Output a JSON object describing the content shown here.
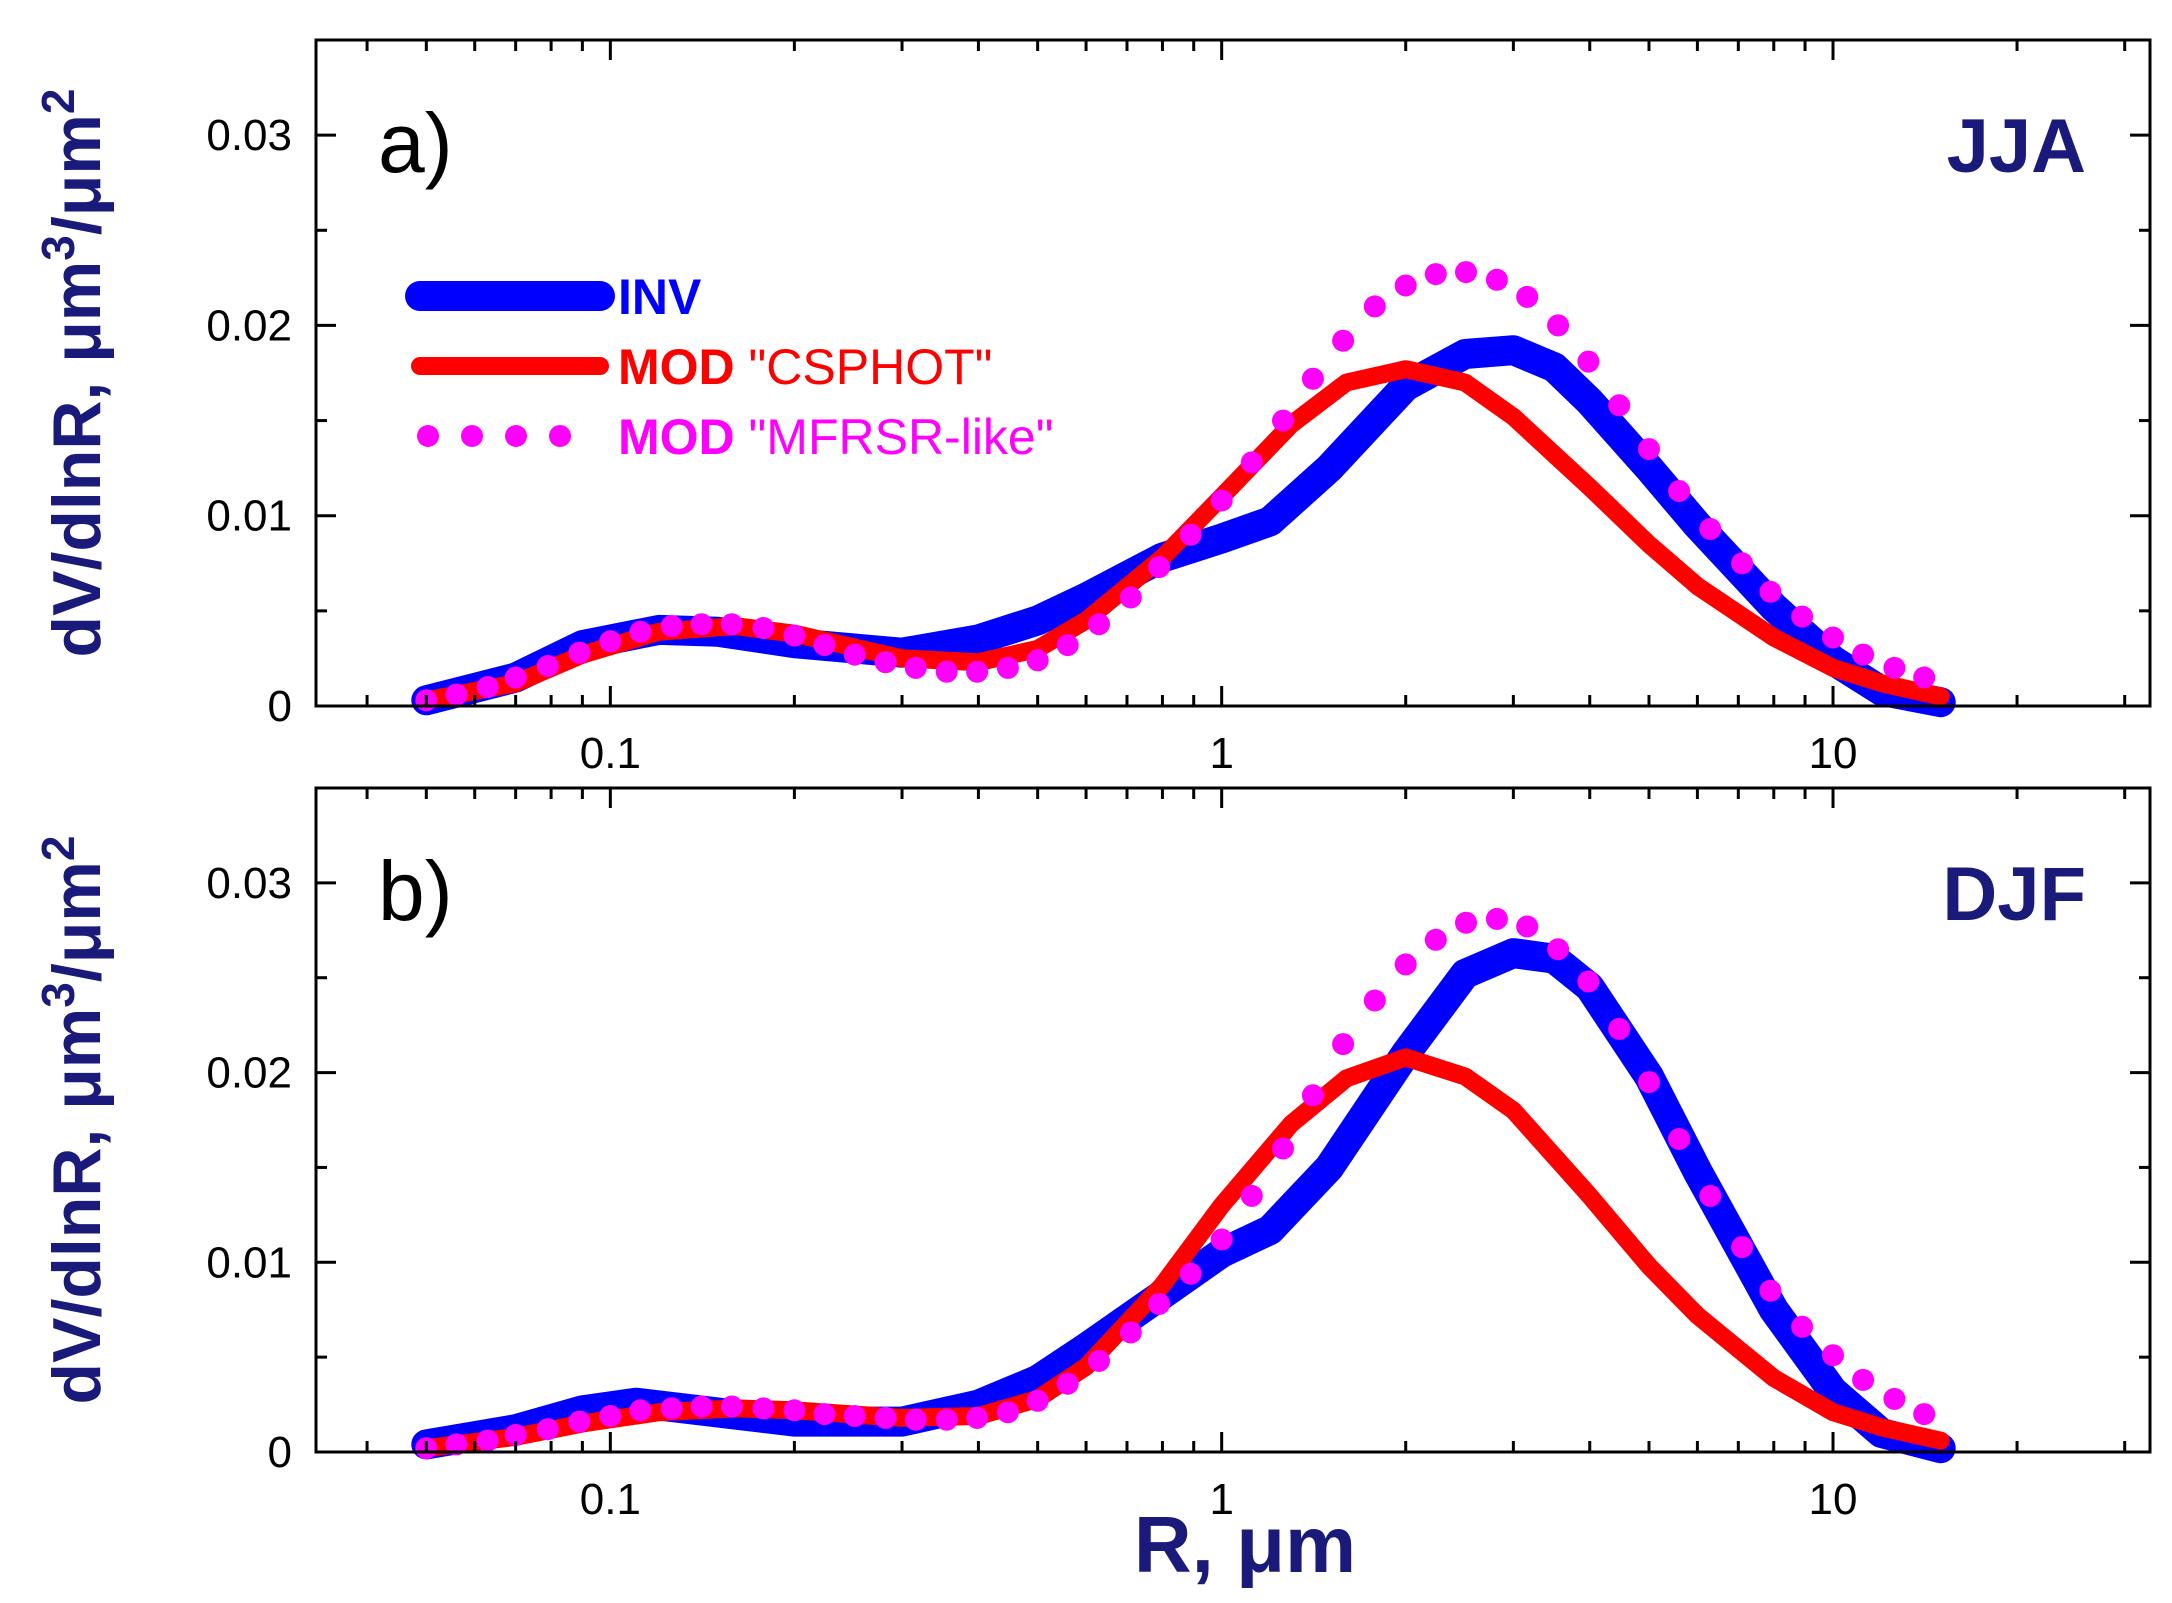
{
  "chart_data": [
    {
      "type": "line",
      "panel_label": "a)",
      "season": "JJA",
      "ylabel": "dV/dlnR, μm³/μm²",
      "ylabel_main": "dV/dlnR, μm",
      "ylabel_mid": "/μm",
      "ylabel_sup1": "3",
      "ylabel_sup2": "2",
      "xlabel": "",
      "xscale": "log",
      "xlim": [
        0.033,
        33
      ],
      "ylim": [
        0,
        0.035
      ],
      "yticks": [
        0,
        0.01,
        0.02,
        0.03
      ],
      "ytick_labels": [
        "0",
        "0.01",
        "0.02",
        "0.03"
      ],
      "xticks": [
        0.1,
        1,
        10
      ],
      "xtick_labels": [
        "0.1",
        "1",
        "10"
      ],
      "series": [
        {
          "name": "INV",
          "style": "thick-solid",
          "color": "#0000ff",
          "x": [
            0.05,
            0.07,
            0.09,
            0.12,
            0.15,
            0.2,
            0.3,
            0.4,
            0.5,
            0.6,
            0.8,
            1.0,
            1.2,
            1.5,
            2.0,
            2.5,
            3.0,
            3.5,
            4.0,
            5.0,
            6.0,
            8.0,
            10.0,
            12.0,
            15.0
          ],
          "y": [
            0.0003,
            0.0015,
            0.0032,
            0.004,
            0.0039,
            0.0033,
            0.0028,
            0.0035,
            0.0045,
            0.0057,
            0.0078,
            0.0088,
            0.0097,
            0.0125,
            0.0168,
            0.0185,
            0.0187,
            0.0178,
            0.016,
            0.0125,
            0.0095,
            0.0052,
            0.0024,
            0.0008,
            0.0002
          ]
        },
        {
          "name": "MOD \"CSPHOT\"",
          "style": "solid",
          "color": "#ff0000",
          "x": [
            0.05,
            0.07,
            0.09,
            0.12,
            0.16,
            0.2,
            0.3,
            0.4,
            0.5,
            0.6,
            0.8,
            1.0,
            1.3,
            1.6,
            2.0,
            2.5,
            3.0,
            4.0,
            5.0,
            6.0,
            8.0,
            10.0,
            12.0,
            15.0
          ],
          "y": [
            0.0003,
            0.0012,
            0.0027,
            0.0039,
            0.0042,
            0.0038,
            0.0025,
            0.0023,
            0.003,
            0.0045,
            0.0078,
            0.011,
            0.0148,
            0.017,
            0.0177,
            0.017,
            0.0152,
            0.0115,
            0.0085,
            0.0063,
            0.0036,
            0.002,
            0.0012,
            0.0005
          ]
        },
        {
          "name": "MOD \"MFRSR-like\"",
          "style": "dotted",
          "color": "#ff00ff",
          "x": [
            0.05,
            0.056,
            0.063,
            0.07,
            0.079,
            0.089,
            0.1,
            0.112,
            0.126,
            0.141,
            0.158,
            0.178,
            0.2,
            0.224,
            0.251,
            0.282,
            0.316,
            0.355,
            0.398,
            0.447,
            0.5,
            0.56,
            0.63,
            0.71,
            0.79,
            0.89,
            1.0,
            1.12,
            1.26,
            1.41,
            1.58,
            1.78,
            2.0,
            2.24,
            2.51,
            2.82,
            3.16,
            3.55,
            3.98,
            4.47,
            5.0,
            5.6,
            6.3,
            7.1,
            7.9,
            8.9,
            10.0,
            11.2,
            12.6,
            14.1
          ],
          "y": [
            0.0003,
            0.0006,
            0.001,
            0.0015,
            0.0021,
            0.0028,
            0.0034,
            0.0039,
            0.0042,
            0.0043,
            0.0043,
            0.0041,
            0.0037,
            0.0032,
            0.0027,
            0.0023,
            0.002,
            0.0018,
            0.0018,
            0.002,
            0.0024,
            0.0032,
            0.0043,
            0.0057,
            0.0073,
            0.009,
            0.0108,
            0.0128,
            0.015,
            0.0172,
            0.0192,
            0.021,
            0.0221,
            0.0227,
            0.0228,
            0.0224,
            0.0215,
            0.02,
            0.0181,
            0.0158,
            0.0135,
            0.0113,
            0.0093,
            0.0075,
            0.006,
            0.0047,
            0.0036,
            0.0027,
            0.002,
            0.0015
          ]
        }
      ]
    },
    {
      "type": "line",
      "panel_label": "b)",
      "season": "DJF",
      "ylabel": "dV/dlnR, μm³/μm²",
      "ylabel_main": "dV/dlnR, μm",
      "ylabel_mid": "/μm",
      "ylabel_sup1": "3",
      "ylabel_sup2": "2",
      "xlabel": "R, μm",
      "xscale": "log",
      "xlim": [
        0.033,
        33
      ],
      "ylim": [
        0,
        0.035
      ],
      "yticks": [
        0,
        0.01,
        0.02,
        0.03
      ],
      "ytick_labels": [
        "0",
        "0.01",
        "0.02",
        "0.03"
      ],
      "xticks": [
        0.1,
        1,
        10
      ],
      "xtick_labels": [
        "0.1",
        "1",
        "10"
      ],
      "series": [
        {
          "name": "INV",
          "style": "thick-solid",
          "color": "#0000ff",
          "x": [
            0.05,
            0.07,
            0.09,
            0.11,
            0.14,
            0.2,
            0.3,
            0.4,
            0.5,
            0.6,
            0.8,
            1.0,
            1.2,
            1.5,
            2.0,
            2.5,
            3.0,
            3.5,
            4.0,
            5.0,
            6.0,
            8.0,
            10.0,
            12.0,
            15.0
          ],
          "y": [
            0.0004,
            0.0012,
            0.0022,
            0.0026,
            0.0022,
            0.0016,
            0.0016,
            0.0025,
            0.0038,
            0.0055,
            0.0083,
            0.0105,
            0.0117,
            0.015,
            0.021,
            0.0252,
            0.0263,
            0.026,
            0.0245,
            0.0198,
            0.0148,
            0.0075,
            0.0032,
            0.001,
            0.0002
          ]
        },
        {
          "name": "MOD \"CSPHOT\"",
          "style": "solid",
          "color": "#ff0000",
          "x": [
            0.05,
            0.07,
            0.09,
            0.12,
            0.16,
            0.2,
            0.3,
            0.4,
            0.5,
            0.6,
            0.8,
            1.0,
            1.3,
            1.6,
            2.0,
            2.5,
            3.0,
            4.0,
            5.0,
            6.0,
            8.0,
            10.0,
            12.0,
            15.0
          ],
          "y": [
            0.0002,
            0.0008,
            0.0015,
            0.0021,
            0.0023,
            0.0022,
            0.0018,
            0.0019,
            0.0028,
            0.0045,
            0.0088,
            0.013,
            0.0173,
            0.0197,
            0.0208,
            0.0198,
            0.018,
            0.0135,
            0.0098,
            0.0072,
            0.0039,
            0.0021,
            0.0013,
            0.0006
          ]
        },
        {
          "name": "MOD \"MFRSR-like\"",
          "style": "dotted",
          "color": "#ff00ff",
          "x": [
            0.05,
            0.056,
            0.063,
            0.07,
            0.079,
            0.089,
            0.1,
            0.112,
            0.126,
            0.141,
            0.158,
            0.178,
            0.2,
            0.224,
            0.251,
            0.282,
            0.316,
            0.355,
            0.398,
            0.447,
            0.5,
            0.56,
            0.63,
            0.71,
            0.79,
            0.89,
            1.0,
            1.12,
            1.26,
            1.41,
            1.58,
            1.78,
            2.0,
            2.24,
            2.51,
            2.82,
            3.16,
            3.55,
            3.98,
            4.47,
            5.0,
            5.6,
            6.3,
            7.1,
            7.9,
            8.9,
            10.0,
            11.2,
            12.6,
            14.1
          ],
          "y": [
            0.0002,
            0.0004,
            0.0006,
            0.0009,
            0.0012,
            0.0016,
            0.0019,
            0.0022,
            0.0023,
            0.0024,
            0.0024,
            0.0023,
            0.0022,
            0.002,
            0.0019,
            0.0018,
            0.0017,
            0.0017,
            0.0018,
            0.0021,
            0.0027,
            0.0036,
            0.0048,
            0.0063,
            0.0078,
            0.0094,
            0.0112,
            0.0135,
            0.016,
            0.0188,
            0.0215,
            0.0238,
            0.0257,
            0.027,
            0.0279,
            0.0281,
            0.0277,
            0.0265,
            0.0248,
            0.0223,
            0.0195,
            0.0165,
            0.0135,
            0.0108,
            0.0085,
            0.0066,
            0.0051,
            0.0038,
            0.0028,
            0.002
          ]
        }
      ]
    }
  ],
  "legend": {
    "items": [
      {
        "bold": "INV",
        "rest": "",
        "color": "#0000ff",
        "style": "thick-solid"
      },
      {
        "bold": "MOD",
        "rest": " \"CSPHOT\"",
        "color": "#ff0000",
        "style": "solid"
      },
      {
        "bold": "MOD",
        "rest": " \"MFRSR-like\"",
        "color": "#ff00ff",
        "style": "dotted"
      }
    ]
  }
}
